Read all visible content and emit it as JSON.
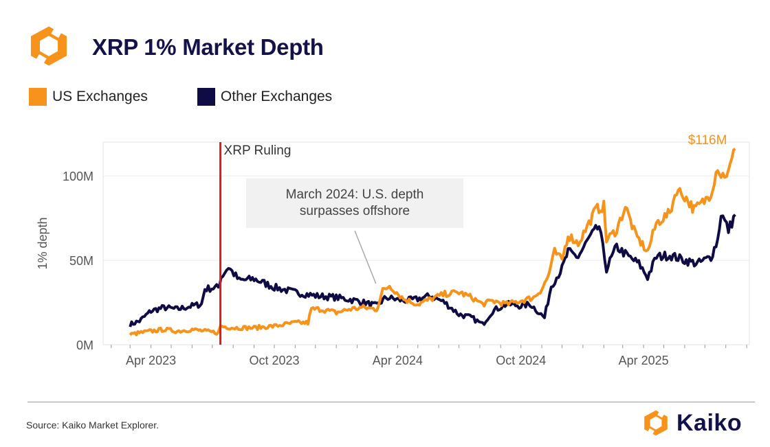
{
  "header": {
    "title": "XRP 1% Market Depth",
    "logo_icon": "kaiko-logo-icon"
  },
  "legend": [
    {
      "label": "US Exchanges",
      "color": "#f7931a"
    },
    {
      "label": "Other Exchanges",
      "color": "#0e0b45"
    }
  ],
  "footer": {
    "source": "Source: Kaiko Market Explorer.",
    "brand": "Kaiko"
  },
  "chart_data": {
    "type": "line",
    "title": "XRP 1% Market Depth",
    "xlabel": "",
    "ylabel": "1% depth",
    "y_unit": "M USD",
    "ylim": [
      0,
      120
    ],
    "y_ticks": [
      {
        "value": 0,
        "label": "0M"
      },
      {
        "value": 50,
        "label": "50M"
      },
      {
        "value": 100,
        "label": "100M"
      }
    ],
    "x_ticks": [
      {
        "date": "2023-04-01",
        "label": "Apr 2023"
      },
      {
        "date": "2023-10-01",
        "label": "Oct 2023"
      },
      {
        "date": "2024-04-01",
        "label": "Apr 2024"
      },
      {
        "date": "2024-10-01",
        "label": "Oct 2024"
      },
      {
        "date": "2025-04-01",
        "label": "Apr 2025"
      }
    ],
    "x_range": [
      "2023-01-20",
      "2025-09-05"
    ],
    "series": [
      {
        "name": "US Exchanges",
        "color": "#f7931a",
        "points": [
          [
            "2023-03-01",
            6
          ],
          [
            "2023-03-15",
            7
          ],
          [
            "2023-04-01",
            8
          ],
          [
            "2023-04-20",
            9
          ],
          [
            "2023-05-10",
            8
          ],
          [
            "2023-06-01",
            9
          ],
          [
            "2023-06-20",
            8
          ],
          [
            "2023-07-10",
            7
          ],
          [
            "2023-07-13",
            11
          ],
          [
            "2023-08-01",
            10
          ],
          [
            "2023-09-01",
            10
          ],
          [
            "2023-10-01",
            11
          ],
          [
            "2023-11-01",
            13
          ],
          [
            "2023-11-20",
            13
          ],
          [
            "2023-11-25",
            21
          ],
          [
            "2023-12-10",
            21
          ],
          [
            "2024-01-01",
            19
          ],
          [
            "2024-01-20",
            21
          ],
          [
            "2024-02-10",
            22
          ],
          [
            "2024-03-01",
            21
          ],
          [
            "2024-03-10",
            32
          ],
          [
            "2024-03-20",
            35
          ],
          [
            "2024-04-10",
            27
          ],
          [
            "2024-05-01",
            24
          ],
          [
            "2024-05-20",
            27
          ],
          [
            "2024-06-10",
            30
          ],
          [
            "2024-07-01",
            31
          ],
          [
            "2024-07-20",
            28
          ],
          [
            "2024-08-05",
            24
          ],
          [
            "2024-08-20",
            26
          ],
          [
            "2024-09-10",
            24
          ],
          [
            "2024-10-01",
            26
          ],
          [
            "2024-10-20",
            28
          ],
          [
            "2024-11-01",
            33
          ],
          [
            "2024-11-10",
            40
          ],
          [
            "2024-11-20",
            55
          ],
          [
            "2024-12-01",
            50
          ],
          [
            "2024-12-10",
            65
          ],
          [
            "2024-12-25",
            60
          ],
          [
            "2025-01-10",
            72
          ],
          [
            "2025-01-20",
            80
          ],
          [
            "2025-02-01",
            82
          ],
          [
            "2025-02-05",
            62
          ],
          [
            "2025-02-20",
            68
          ],
          [
            "2025-03-05",
            82
          ],
          [
            "2025-03-20",
            65
          ],
          [
            "2025-04-07",
            55
          ],
          [
            "2025-04-20",
            72
          ],
          [
            "2025-05-10",
            78
          ],
          [
            "2025-05-20",
            92
          ],
          [
            "2025-06-01",
            88
          ],
          [
            "2025-06-15",
            80
          ],
          [
            "2025-06-30",
            85
          ],
          [
            "2025-07-10",
            90
          ],
          [
            "2025-07-20",
            106
          ],
          [
            "2025-07-25",
            100
          ],
          [
            "2025-08-05",
            102
          ],
          [
            "2025-08-15",
            116
          ]
        ]
      },
      {
        "name": "Other Exchanges",
        "color": "#0e0b45",
        "points": [
          [
            "2023-03-01",
            12
          ],
          [
            "2023-03-15",
            14
          ],
          [
            "2023-04-01",
            20
          ],
          [
            "2023-04-20",
            22
          ],
          [
            "2023-05-10",
            21
          ],
          [
            "2023-06-01",
            23
          ],
          [
            "2023-06-15",
            24
          ],
          [
            "2023-06-20",
            33
          ],
          [
            "2023-07-10",
            34
          ],
          [
            "2023-07-14",
            40
          ],
          [
            "2023-07-25",
            46
          ],
          [
            "2023-08-10",
            38
          ],
          [
            "2023-09-01",
            39
          ],
          [
            "2023-10-01",
            34
          ],
          [
            "2023-11-01",
            31
          ],
          [
            "2023-12-01",
            29
          ],
          [
            "2024-01-01",
            28
          ],
          [
            "2024-02-01",
            26
          ],
          [
            "2024-03-01",
            23
          ],
          [
            "2024-03-15",
            28
          ],
          [
            "2024-04-10",
            26
          ],
          [
            "2024-05-01",
            27
          ],
          [
            "2024-05-20",
            29
          ],
          [
            "2024-06-10",
            25
          ],
          [
            "2024-07-01",
            18
          ],
          [
            "2024-07-20",
            16
          ],
          [
            "2024-08-05",
            12
          ],
          [
            "2024-08-20",
            20
          ],
          [
            "2024-09-10",
            24
          ],
          [
            "2024-10-01",
            23
          ],
          [
            "2024-10-15",
            24
          ],
          [
            "2024-11-05",
            16
          ],
          [
            "2024-11-15",
            35
          ],
          [
            "2024-12-01",
            45
          ],
          [
            "2024-12-10",
            55
          ],
          [
            "2024-12-25",
            52
          ],
          [
            "2025-01-10",
            63
          ],
          [
            "2025-01-25",
            70
          ],
          [
            "2025-02-05",
            45
          ],
          [
            "2025-02-20",
            58
          ],
          [
            "2025-03-10",
            52
          ],
          [
            "2025-03-25",
            48
          ],
          [
            "2025-04-07",
            40
          ],
          [
            "2025-04-20",
            52
          ],
          [
            "2025-05-10",
            53
          ],
          [
            "2025-06-01",
            50
          ],
          [
            "2025-06-20",
            48
          ],
          [
            "2025-07-10",
            52
          ],
          [
            "2025-07-20",
            62
          ],
          [
            "2025-07-25",
            78
          ],
          [
            "2025-08-05",
            68
          ],
          [
            "2025-08-15",
            77
          ]
        ]
      }
    ],
    "annotations": [
      {
        "name": "xrp-ruling",
        "type": "vline",
        "date": "2023-07-13",
        "label": "XRP Ruling",
        "color": "#e31a1c"
      },
      {
        "name": "march-2024-callout",
        "type": "callout",
        "date": "2024-03-10",
        "value": 37,
        "text_lines": [
          "March 2024: U.S. depth",
          "surpasses offshore"
        ]
      },
      {
        "name": "last-value-label",
        "type": "value-label",
        "date": "2025-08-15",
        "value": 116,
        "text": "$116M",
        "color": "#f7931a"
      }
    ]
  }
}
